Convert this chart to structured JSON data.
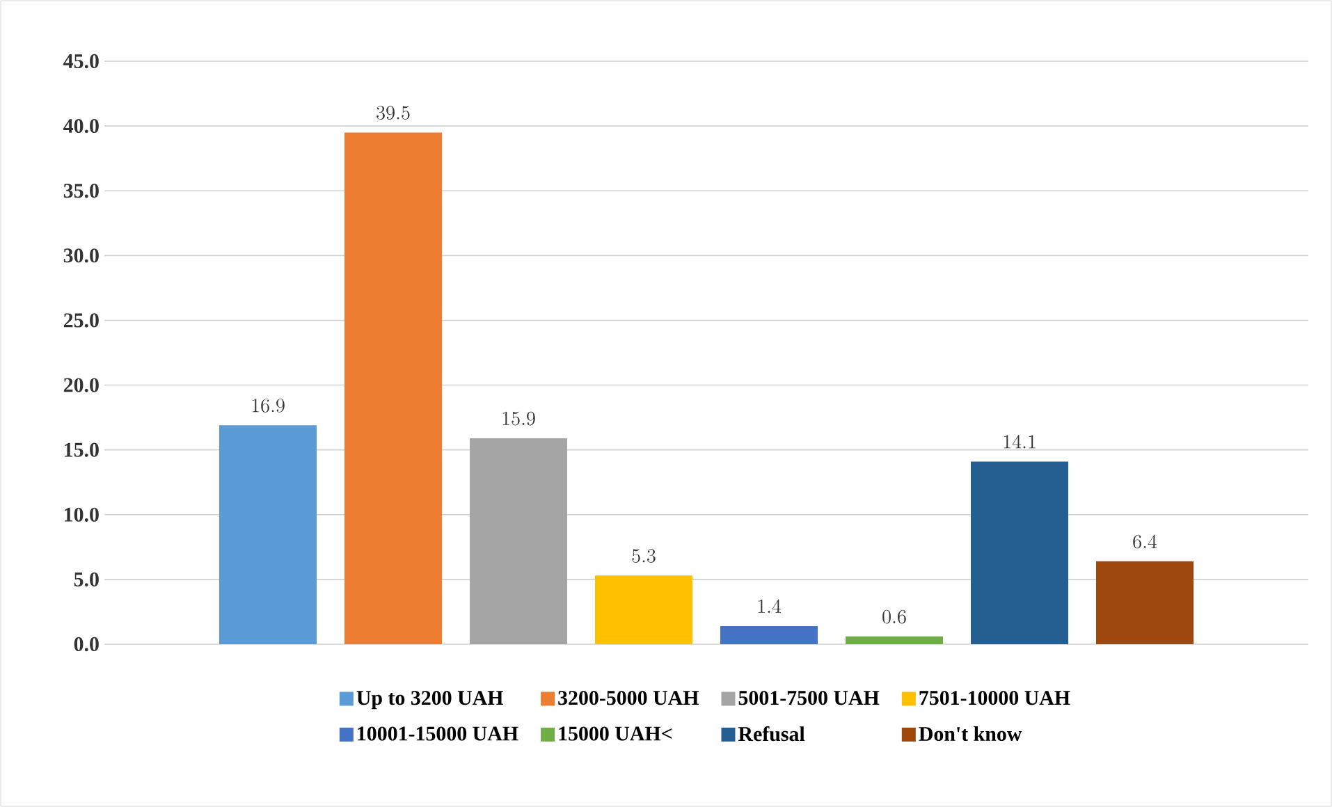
{
  "chart_data": {
    "type": "bar",
    "categories": [
      null
    ],
    "series": [
      {
        "name": "Up to 3200 UAH",
        "color": "#5b9bd5",
        "values": [
          16.9
        ]
      },
      {
        "name": "3200-5000 UAH",
        "color": "#ed7d31",
        "values": [
          39.5
        ]
      },
      {
        "name": "5001-7500 UAH",
        "color": "#a5a5a5",
        "values": [
          15.9
        ]
      },
      {
        "name": "7501-10000 UAH",
        "color": "#ffc000",
        "values": [
          5.3
        ]
      },
      {
        "name": "10001-15000 UAH",
        "color": "#4472c4",
        "values": [
          1.4
        ]
      },
      {
        "name": "15000 UAH<",
        "color": "#70ad47",
        "values": [
          0.6
        ]
      },
      {
        "name": "Refusal",
        "color": "#255e91",
        "values": [
          14.1
        ]
      },
      {
        "name": "Don't know",
        "color": "#9e480e",
        "values": [
          6.4
        ]
      }
    ],
    "ylim": [
      0,
      45
    ],
    "yticks": [
      {
        "value": 0,
        "label": "0.0"
      },
      {
        "value": 5,
        "label": "5.0"
      },
      {
        "value": 10,
        "label": "10.0"
      },
      {
        "value": 15,
        "label": "15.0"
      },
      {
        "value": 20,
        "label": "20.0"
      },
      {
        "value": 25,
        "label": "25.0"
      },
      {
        "value": 30,
        "label": "30.0"
      },
      {
        "value": 35,
        "label": "35.0"
      },
      {
        "value": 40,
        "label": "40.0"
      },
      {
        "value": 45,
        "label": "45.0"
      }
    ],
    "grid": "y",
    "legend": "bottom",
    "data_labels": true
  }
}
